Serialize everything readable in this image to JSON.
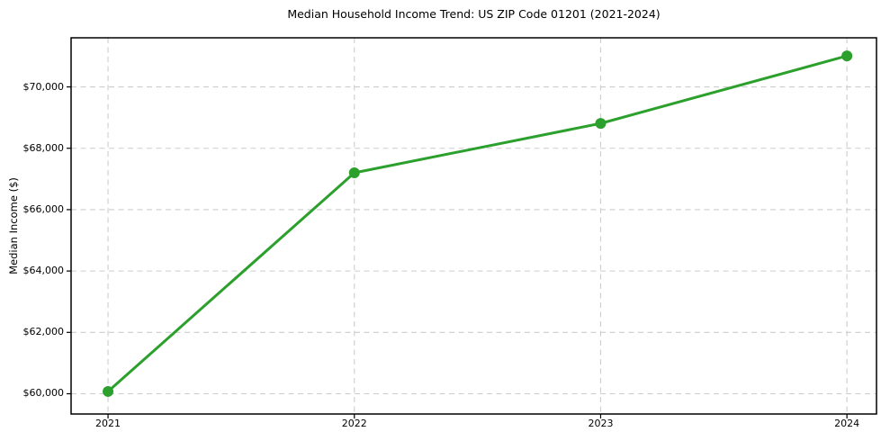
{
  "chart_data": {
    "type": "line",
    "title": "Median Household Income Trend: US ZIP Code 01201 (2021-2024)",
    "xlabel": "",
    "ylabel": "Median Income ($)",
    "x": [
      2021,
      2022,
      2023,
      2024
    ],
    "values": [
      60075,
      67200,
      68810,
      71010
    ],
    "series_name": "Median household income",
    "xtick_labels": [
      "2021",
      "2022",
      "2023",
      "2024"
    ],
    "ytick_values": [
      60000,
      62000,
      64000,
      66000,
      68000,
      70000
    ],
    "ytick_labels": [
      "$60,000",
      "$62,000",
      "$64,000",
      "$66,000",
      "$68,000",
      "$70,000"
    ],
    "xlim": [
      2020.85,
      2024.12
    ],
    "ylim": [
      59340,
      71600
    ],
    "grid": true,
    "grid_style": "dashed",
    "legend": false,
    "colors": {
      "line": "#2ca02c",
      "marker": "#2ca02c",
      "grid": "#cdcdcd",
      "axis": "#000000",
      "background": "#ffffff",
      "text": "#000000"
    }
  }
}
